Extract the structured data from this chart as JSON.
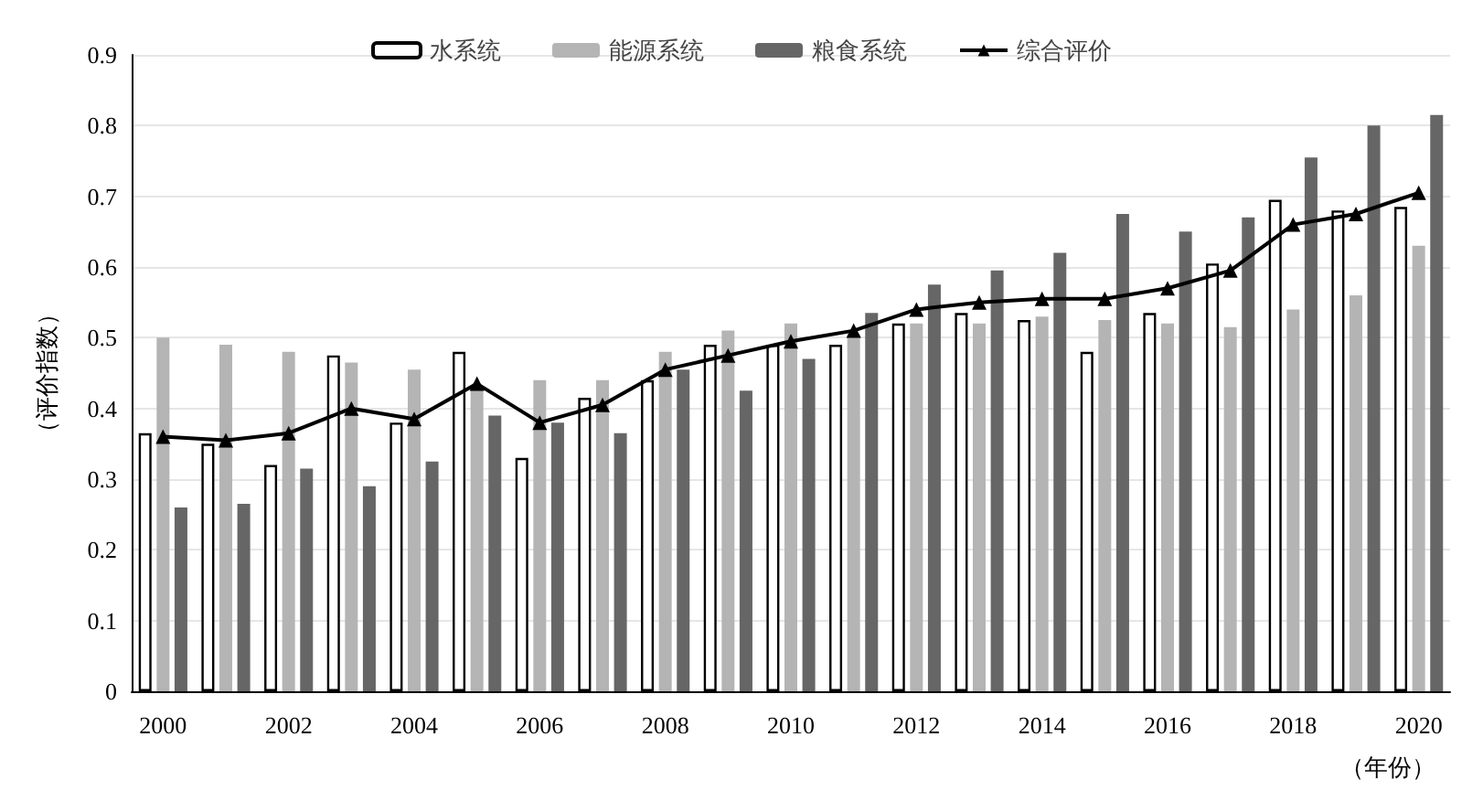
{
  "chart_data": {
    "type": "bar",
    "xlabel": "（年份）",
    "ylabel": "（评价指数）",
    "categories": [
      "2000",
      null,
      "2002",
      null,
      "2004",
      null,
      "2006",
      null,
      "2008",
      null,
      "2010",
      null,
      "2012",
      null,
      "2014",
      null,
      "2016",
      null,
      "2018",
      null,
      "2020"
    ],
    "series": [
      {
        "name": "水系统",
        "color": "#ffffff",
        "values": [
          0.365,
          0.35,
          0.32,
          0.475,
          0.38,
          0.48,
          0.33,
          0.415,
          0.44,
          0.49,
          0.49,
          0.49,
          0.52,
          0.535,
          0.525,
          0.48,
          0.535,
          0.605,
          0.695,
          0.68,
          0.685
        ]
      },
      {
        "name": "能源系统",
        "color": "#b4b4b4",
        "values": [
          0.5,
          0.49,
          0.48,
          0.465,
          0.455,
          0.43,
          0.44,
          0.44,
          0.48,
          0.51,
          0.52,
          0.505,
          0.52,
          0.52,
          0.53,
          0.525,
          0.52,
          0.515,
          0.54,
          0.56,
          0.63
        ]
      },
      {
        "name": "粮食系统",
        "color": "#666666",
        "values": [
          0.26,
          0.265,
          0.315,
          0.29,
          0.325,
          0.39,
          0.38,
          0.365,
          0.455,
          0.425,
          0.47,
          0.535,
          0.575,
          0.595,
          0.62,
          0.675,
          0.65,
          0.67,
          0.755,
          0.8,
          0.815
        ]
      },
      {
        "name": "综合评价",
        "type": "line",
        "color": "#000000",
        "marker": "triangle",
        "values": [
          0.36,
          0.355,
          0.365,
          0.4,
          0.385,
          0.435,
          0.38,
          0.405,
          0.455,
          0.475,
          0.495,
          0.51,
          0.54,
          0.55,
          0.555,
          0.555,
          0.57,
          0.595,
          0.66,
          0.675,
          0.705
        ]
      }
    ],
    "ylim": [
      0,
      0.9
    ],
    "yticks": [
      0,
      0.1,
      0.2,
      0.3,
      0.4,
      0.5,
      0.6,
      0.7,
      0.8,
      0.9
    ],
    "grid": "y",
    "legend": "top"
  }
}
